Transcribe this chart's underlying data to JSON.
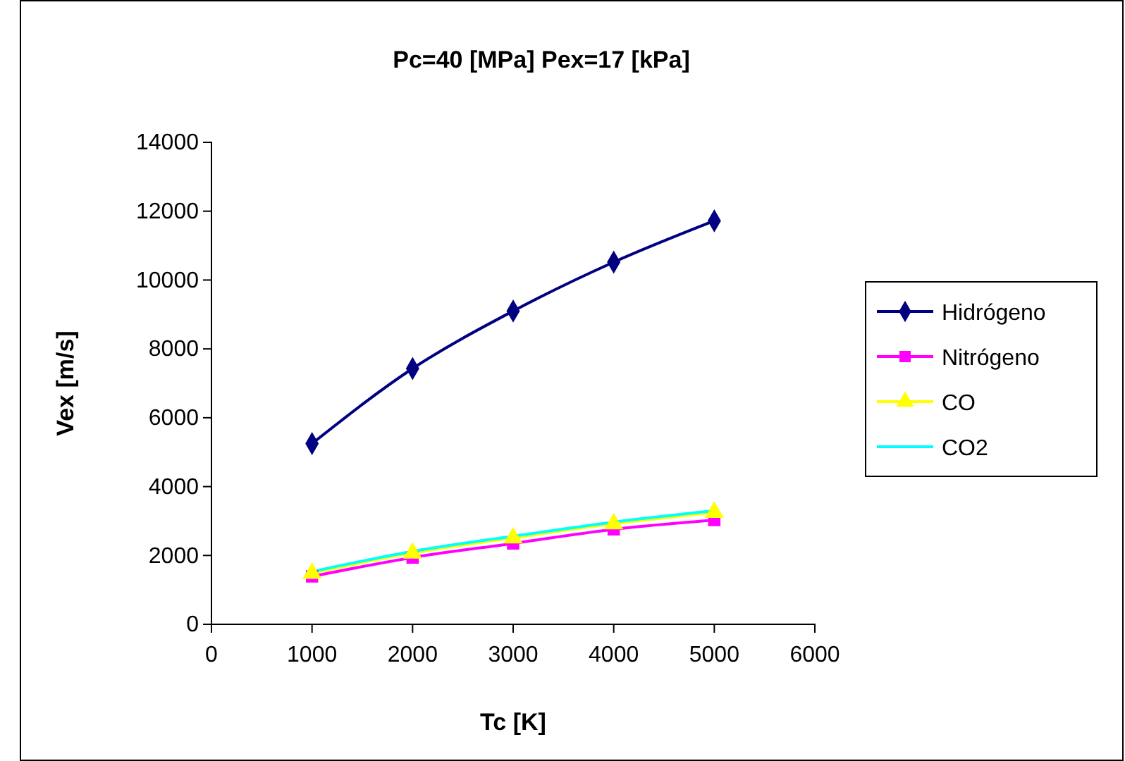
{
  "chart_data": {
    "type": "line",
    "title": "Pc=40 [MPa] Pex=17 [kPa]",
    "xlabel": "Tc  [K]",
    "ylabel": "Vex [m/s]",
    "x": [
      1000,
      2000,
      3000,
      4000,
      5000
    ],
    "series": [
      {
        "name": "Hidrógeno",
        "color": "#000080",
        "marker": "diamond",
        "values": [
          5250,
          7430,
          9100,
          10520,
          11720
        ]
      },
      {
        "name": "Nitrógeno",
        "color": "#ff00ff",
        "marker": "square",
        "values": [
          1390,
          1940,
          2350,
          2760,
          3030
        ]
      },
      {
        "name": "CO",
        "color": "#ffff00",
        "marker": "triangle",
        "values": [
          1480,
          2070,
          2510,
          2920,
          3250
        ]
      },
      {
        "name": "CO2",
        "color": "#00ffff",
        "marker": "none",
        "values": [
          1530,
          2120,
          2560,
          2970,
          3300
        ]
      }
    ],
    "xlim": [
      0,
      6000
    ],
    "xticks": [
      0,
      1000,
      2000,
      3000,
      4000,
      5000,
      6000
    ],
    "ylim": [
      0,
      14000
    ],
    "yticks": [
      0,
      2000,
      4000,
      6000,
      8000,
      10000,
      12000,
      14000
    ],
    "grid": false,
    "legend": "right"
  }
}
